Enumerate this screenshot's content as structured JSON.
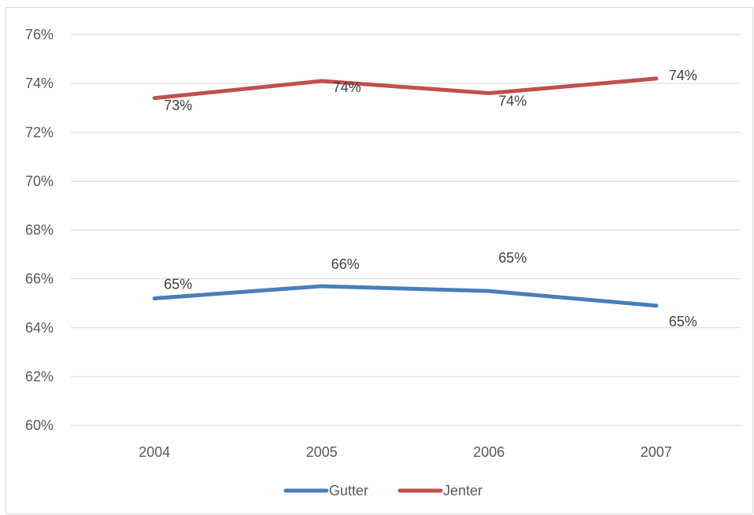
{
  "chart_data": {
    "type": "line",
    "categories": [
      "2004",
      "2005",
      "2006",
      "2007"
    ],
    "ylim": [
      0.6,
      0.76
    ],
    "ytick_step": 0.02,
    "grid": true,
    "legend_position": "bottom",
    "series": [
      {
        "name": "Gutter",
        "color": "#4a7ebb",
        "values": [
          0.652,
          0.657,
          0.655,
          0.649
        ],
        "labels": [
          "65%",
          "66%",
          "65%",
          "65%"
        ]
      },
      {
        "name": "Jenter",
        "color": "#c0504d",
        "values": [
          0.734,
          0.741,
          0.736,
          0.742
        ],
        "labels": [
          "73%",
          "74%",
          "74%",
          "74%"
        ]
      }
    ]
  }
}
